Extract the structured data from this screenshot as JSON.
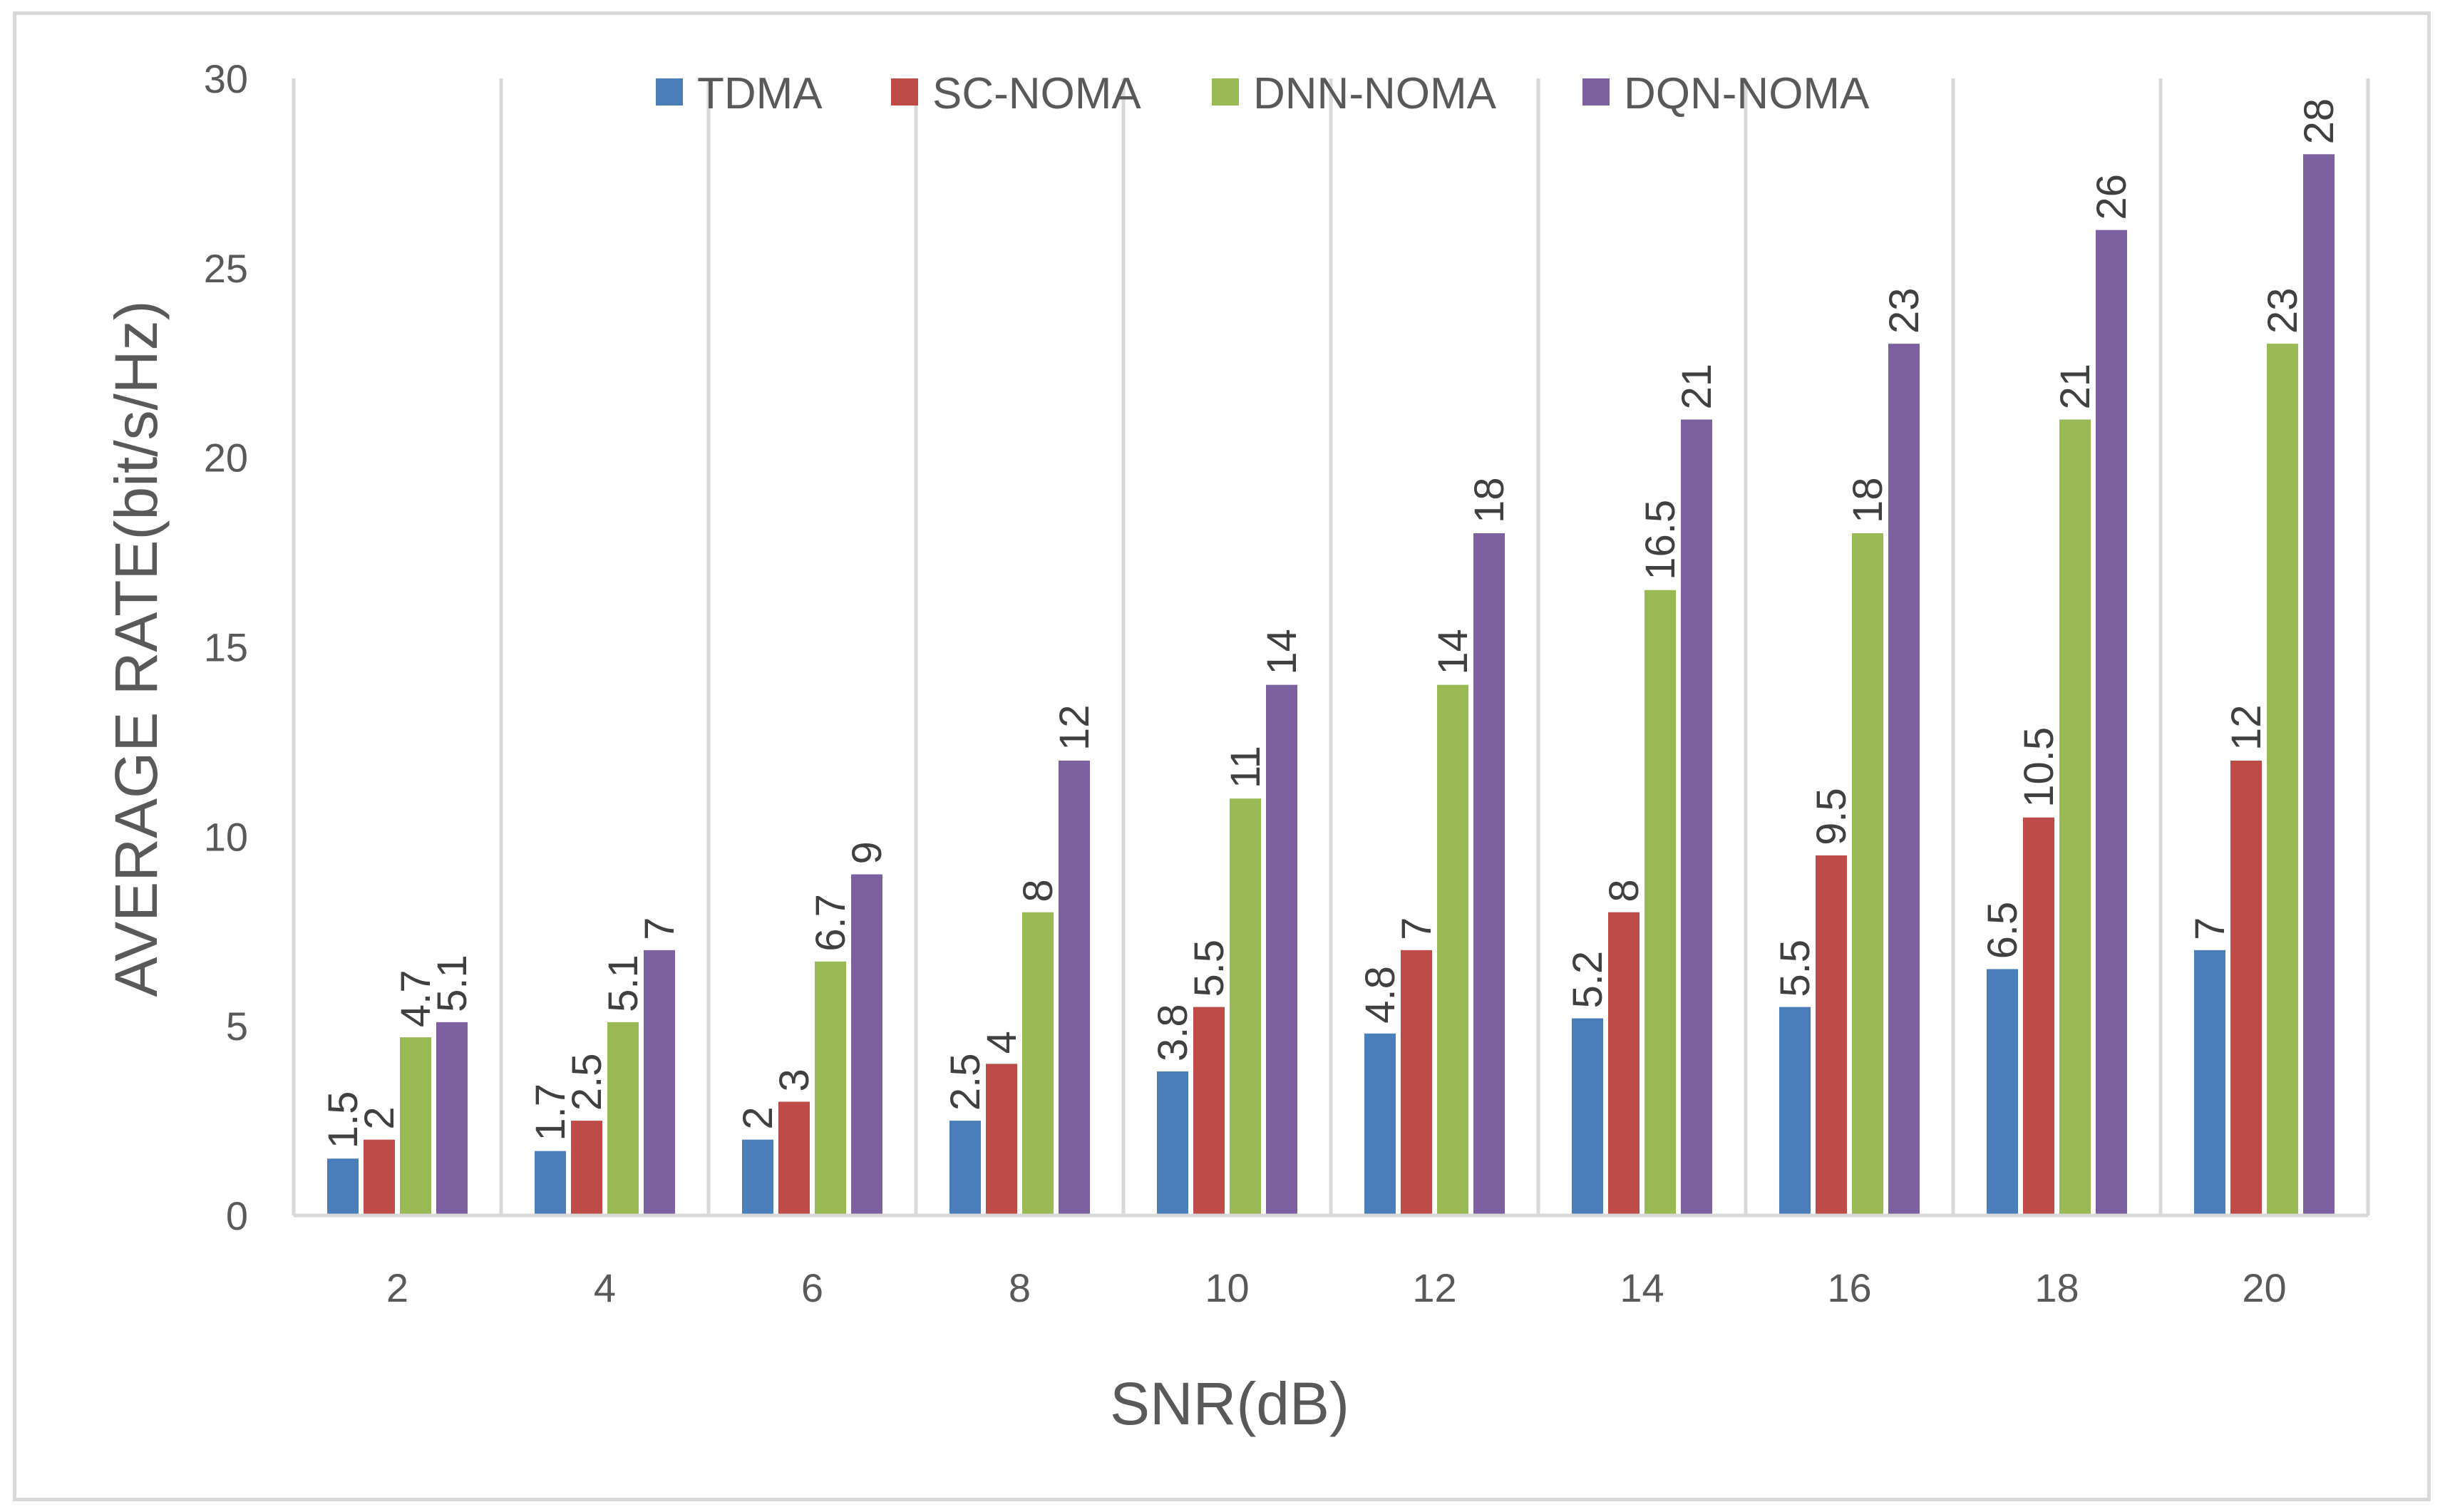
{
  "chart_data": {
    "type": "bar",
    "title": "",
    "xlabel": "SNR(dB)",
    "ylabel": "AVERAGE RATE(bit/s/Hz)",
    "categories": [
      "2",
      "4",
      "6",
      "8",
      "10",
      "12",
      "14",
      "16",
      "18",
      "20"
    ],
    "ylim": [
      0,
      30
    ],
    "yticks": [
      0,
      5,
      10,
      15,
      20,
      25,
      30
    ],
    "grid": "vertical separators between categories",
    "legend_position": "top",
    "series": [
      {
        "name": "TDMA",
        "color": "#4a7ebb",
        "values": [
          1.5,
          1.7,
          2,
          2.5,
          3.8,
          4.8,
          5.2,
          5.5,
          6.5,
          7
        ],
        "labels": [
          "1.5",
          "1.7",
          "2",
          "2.5",
          "3.8",
          "4.8",
          "5.2",
          "5.5",
          "6.5",
          "7"
        ]
      },
      {
        "name": "SC-NOMA",
        "color": "#be4b48",
        "values": [
          2,
          2.5,
          3,
          4,
          5.5,
          7,
          8,
          9.5,
          10.5,
          12
        ],
        "labels": [
          "2",
          "2.5",
          "3",
          "4",
          "5.5",
          "7",
          "8",
          "9.5",
          "10.5",
          "12"
        ]
      },
      {
        "name": "DNN-NOMA",
        "color": "#98b954",
        "values": [
          4.7,
          5.1,
          6.7,
          8,
          11,
          14,
          16.5,
          18,
          21,
          23
        ],
        "labels": [
          "4.7",
          "5.1",
          "6.7",
          "8",
          "11",
          "14",
          "16.5",
          "18",
          "21",
          "23"
        ]
      },
      {
        "name": "DQN-NOMA",
        "color": "#7d60a0",
        "values": [
          5.1,
          7,
          9,
          12,
          14,
          18,
          21,
          23,
          26,
          28
        ],
        "labels": [
          "5.1",
          "7",
          "9",
          "12",
          "14",
          "18",
          "21",
          "23",
          "26",
          "28"
        ]
      }
    ]
  }
}
